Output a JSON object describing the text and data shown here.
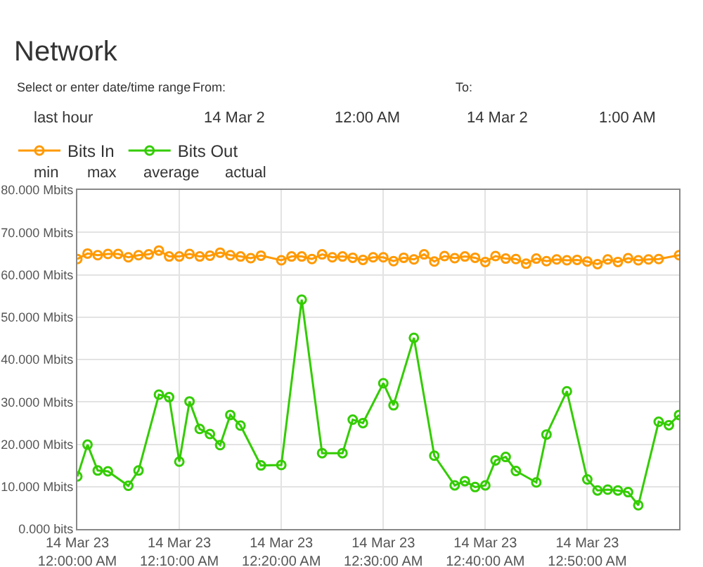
{
  "chart_data": {
    "type": "line",
    "title": "Network",
    "annotations": [
      "Select or enter date/time range",
      "From:",
      "To:",
      "last hour",
      "14 Mar 2",
      "12:00 AM",
      "14 Mar 2",
      "1:00 AM",
      "min",
      "max",
      "average",
      "actual"
    ],
    "series": [
      {
        "name": "Bits In",
        "color": "#ff9900",
        "x": [
          "--03-14T00:00",
          "--03-14T00:01",
          "--03-14T00:02",
          "--03-14T00:03",
          "--03-14T00:04",
          "--03-14T00:05",
          "--03-14T00:06",
          "--03-14T00:07",
          "--03-14T00:08",
          "--03-14T00:09",
          "--03-14T00:10",
          "--03-14T00:11",
          "--03-14T00:12",
          "--03-14T00:13",
          "--03-14T00:14",
          "--03-14T00:15",
          "--03-14T00:16",
          "--03-14T00:17",
          "--03-14T00:18",
          "--03-14T00:20",
          "--03-14T00:21",
          "--03-14T00:22",
          "--03-14T00:23",
          "--03-14T00:24",
          "--03-14T00:25",
          "--03-14T00:26",
          "--03-14T00:27",
          "--03-14T00:28",
          "--03-14T00:29",
          "--03-14T00:30",
          "--03-14T00:31",
          "--03-14T00:32",
          "--03-14T00:33",
          "--03-14T00:34",
          "--03-14T00:35",
          "--03-14T00:36",
          "--03-14T00:37",
          "--03-14T00:38",
          "--03-14T00:39",
          "--03-14T00:40",
          "--03-14T00:41",
          "--03-14T00:42",
          "--03-14T00:43",
          "--03-14T00:44",
          "--03-14T00:45",
          "--03-14T00:46",
          "--03-14T00:47",
          "--03-14T00:48",
          "--03-14T00:49",
          "--03-14T00:50",
          "--03-14T00:51",
          "--03-14T00:52",
          "--03-14T00:53",
          "--03-14T00:54",
          "--03-14T00:55",
          "--03-14T00:56",
          "--03-14T00:57",
          "--03-14T00:59"
        ],
        "values": [
          63.7,
          65.0,
          64.6,
          64.9,
          64.9,
          64.1,
          64.6,
          64.8,
          65.7,
          64.3,
          64.3,
          64.9,
          64.3,
          64.5,
          65.2,
          64.6,
          64.3,
          63.9,
          64.5,
          63.4,
          64.3,
          64.3,
          63.7,
          64.8,
          64.1,
          64.3,
          64.0,
          63.5,
          64.1,
          64.1,
          63.2,
          64.0,
          63.6,
          64.8,
          63.1,
          64.4,
          63.9,
          64.3,
          64.0,
          63.0,
          64.4,
          63.8,
          63.7,
          62.6,
          63.8,
          63.2,
          63.6,
          63.4,
          63.5,
          63.1,
          62.5,
          63.6,
          63.0,
          63.9,
          63.4,
          63.6,
          63.7,
          64.6
        ]
      },
      {
        "name": "Bits Out",
        "color": "#33cc00",
        "x": [
          "--03-14T00:00",
          "--03-14T00:01",
          "--03-14T00:02",
          "--03-14T00:03",
          "--03-14T00:05",
          "--03-14T00:06",
          "--03-14T00:08",
          "--03-14T00:09",
          "--03-14T00:10",
          "--03-14T00:11",
          "--03-14T00:12",
          "--03-14T00:13",
          "--03-14T00:14",
          "--03-14T00:15",
          "--03-14T00:16",
          "--03-14T00:18",
          "--03-14T00:20",
          "--03-14T00:22",
          "--03-14T00:24",
          "--03-14T00:26",
          "--03-14T00:27",
          "--03-14T00:28",
          "--03-14T00:30",
          "--03-14T00:31",
          "--03-14T00:33",
          "--03-14T00:35",
          "--03-14T00:37",
          "--03-14T00:38",
          "--03-14T00:39",
          "--03-14T00:40",
          "--03-14T00:41",
          "--03-14T00:42",
          "--03-14T00:43",
          "--03-14T00:45",
          "--03-14T00:46",
          "--03-14T00:48",
          "--03-14T00:50",
          "--03-14T00:51",
          "--03-14T00:52",
          "--03-14T00:53",
          "--03-14T00:54",
          "--03-14T00:55",
          "--03-14T00:57",
          "--03-14T00:58",
          "--03-14T00:59"
        ],
        "values": [
          12.4,
          19.9,
          13.8,
          13.6,
          10.2,
          13.8,
          31.7,
          31.1,
          15.9,
          30.1,
          23.6,
          22.4,
          19.8,
          26.9,
          24.4,
          15.0,
          15.1,
          54.1,
          17.9,
          17.9,
          25.8,
          25.0,
          34.4,
          29.2,
          45.1,
          17.3,
          10.3,
          11.3,
          9.9,
          10.3,
          16.2,
          17.0,
          13.7,
          11.0,
          22.3,
          32.5,
          11.7,
          9.1,
          9.3,
          9.1,
          8.7,
          5.6,
          25.3,
          24.5,
          26.9
        ]
      }
    ],
    "xlim": [
      "--03-14T00:00",
      "--03-14T00:59"
    ],
    "xticks": [
      {
        "value": "--03-14T00:00",
        "label": "14 Mar 23\n12:00:00 AM"
      },
      {
        "value": "--03-14T00:10",
        "label": "14 Mar 23\n12:10:00 AM"
      },
      {
        "value": "--03-14T00:20",
        "label": "14 Mar 23\n12:20:00 AM"
      },
      {
        "value": "--03-14T00:30",
        "label": "14 Mar 23\n12:30:00 AM"
      },
      {
        "value": "--03-14T00:40",
        "label": "14 Mar 23\n12:40:00 AM"
      },
      {
        "value": "--03-14T00:50",
        "label": "14 Mar 23\n12:50:00 AM"
      }
    ],
    "ylim": [
      0,
      80
    ],
    "yticks": [
      {
        "value": 0,
        "label": "0.000 bits"
      },
      {
        "value": 10,
        "label": "10.000 Mbits"
      },
      {
        "value": 20,
        "label": "20.000 Mbits"
      },
      {
        "value": 30,
        "label": "30.000 Mbits"
      },
      {
        "value": 40,
        "label": "40.000 Mbits"
      },
      {
        "value": 50,
        "label": "50.000 Mbits"
      },
      {
        "value": 60,
        "label": "60.000 Mbits"
      },
      {
        "value": 70,
        "label": "70.000 Mbits"
      },
      {
        "value": 80,
        "label": "80.000 Mbits"
      }
    ],
    "grid": true,
    "legend": "top left",
    "marker": "circle",
    "line_style": "solid"
  }
}
